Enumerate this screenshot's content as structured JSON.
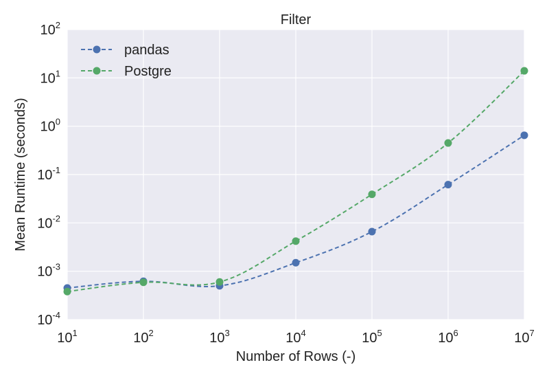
{
  "chart_data": {
    "type": "line",
    "title": "Filter",
    "xlabel": "Number of Rows (-)",
    "ylabel": "Mean Runtime (seconds)",
    "xscale": "log",
    "yscale": "log",
    "xlim": [
      10,
      10000000
    ],
    "ylim": [
      0.0001,
      100
    ],
    "x": [
      10,
      100,
      1000,
      10000,
      100000,
      1000000,
      10000000
    ],
    "xticks": [
      {
        "value": 10,
        "base": "10",
        "exp": "1"
      },
      {
        "value": 100,
        "base": "10",
        "exp": "2"
      },
      {
        "value": 1000,
        "base": "10",
        "exp": "3"
      },
      {
        "value": 10000,
        "base": "10",
        "exp": "4"
      },
      {
        "value": 100000,
        "base": "10",
        "exp": "5"
      },
      {
        "value": 1000000,
        "base": "10",
        "exp": "6"
      },
      {
        "value": 10000000,
        "base": "10",
        "exp": "7"
      }
    ],
    "yticks": [
      {
        "value": 0.0001,
        "base": "10",
        "exp": "-4"
      },
      {
        "value": 0.001,
        "base": "10",
        "exp": "-3"
      },
      {
        "value": 0.01,
        "base": "10",
        "exp": "-2"
      },
      {
        "value": 0.1,
        "base": "10",
        "exp": "-1"
      },
      {
        "value": 1,
        "base": "10",
        "exp": "0"
      },
      {
        "value": 10,
        "base": "10",
        "exp": "1"
      },
      {
        "value": 100,
        "base": "10",
        "exp": "2"
      }
    ],
    "series": [
      {
        "name": "pandas",
        "color": "#4c72b0",
        "values": [
          0.00045,
          0.00062,
          0.0005,
          0.0015,
          0.0066,
          0.062,
          0.65
        ]
      },
      {
        "name": "Postgre",
        "color": "#55a868",
        "values": [
          0.00038,
          0.00059,
          0.0006,
          0.0042,
          0.039,
          0.45,
          14
        ]
      }
    ],
    "grid": true,
    "legend_position": "top-left",
    "background_color": "#eaeaf2",
    "line_style": "dashed",
    "marker": "circle"
  }
}
